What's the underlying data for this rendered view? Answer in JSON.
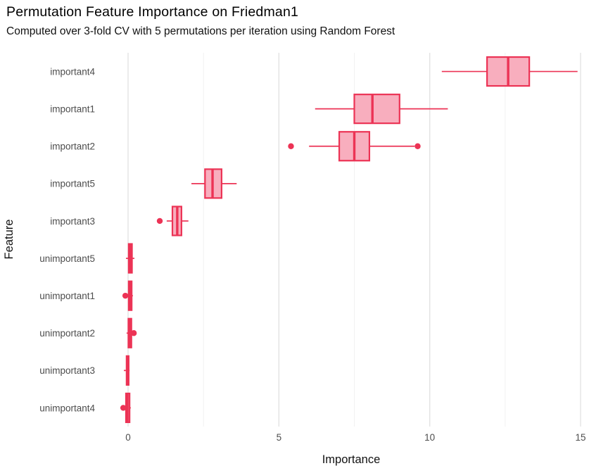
{
  "figure": {
    "background": "#ffffff"
  },
  "chart_data": {
    "type": "boxplot",
    "orientation": "horizontal",
    "title": "Permutation Feature Importance on Friedman1",
    "subtitle": "Computed over 3-fold CV with 5 permutations per iteration using Random Forest",
    "xlabel": "Importance",
    "ylabel": "Feature",
    "xlim": [
      -0.91,
      15.54
    ],
    "x_major_ticks": [
      0,
      5,
      10,
      15
    ],
    "x_minor_ticks": [
      2.5,
      7.5,
      12.5
    ],
    "grid": {
      "vertical_major": true,
      "vertical_minor": true,
      "horizontal": false
    },
    "legend": "none",
    "colors": {
      "box_stroke": "#EC3355",
      "box_fill": "#F8AEBE",
      "grid_major": "#E3E3E3",
      "grid_minor": "#F1F1F1",
      "tick_label": "#4D4D4D",
      "axis_title": "#111111"
    },
    "categories": [
      "important4",
      "important1",
      "important2",
      "important5",
      "important3",
      "unimportant5",
      "unimportant1",
      "unimportant2",
      "unimportant3",
      "unimportant4"
    ],
    "series": [
      {
        "name": "important4",
        "whisker_low": 10.4,
        "q1": 11.9,
        "median": 12.6,
        "q3": 13.3,
        "whisker_high": 14.9,
        "outliers": []
      },
      {
        "name": "important1",
        "whisker_low": 6.2,
        "q1": 7.5,
        "median": 8.1,
        "q3": 9.0,
        "whisker_high": 10.6,
        "outliers": []
      },
      {
        "name": "important2",
        "whisker_low": 6.0,
        "q1": 7.0,
        "median": 7.5,
        "q3": 8.0,
        "whisker_high": 9.5,
        "outliers": [
          5.4,
          9.6
        ]
      },
      {
        "name": "important5",
        "whisker_low": 2.1,
        "q1": 2.55,
        "median": 2.8,
        "q3": 3.1,
        "whisker_high": 3.6,
        "outliers": []
      },
      {
        "name": "important3",
        "whisker_low": 1.28,
        "q1": 1.47,
        "median": 1.63,
        "q3": 1.77,
        "whisker_high": 2.0,
        "outliers": [
          1.05
        ]
      },
      {
        "name": "unimportant5",
        "whisker_low": -0.07,
        "q1": 0.02,
        "median": 0.07,
        "q3": 0.13,
        "whisker_high": 0.21,
        "outliers": []
      },
      {
        "name": "unimportant1",
        "whisker_low": -0.04,
        "q1": 0.02,
        "median": 0.06,
        "q3": 0.12,
        "whisker_high": 0.16,
        "outliers": [
          -0.09
        ]
      },
      {
        "name": "unimportant2",
        "whisker_low": -0.05,
        "q1": 0.01,
        "median": 0.05,
        "q3": 0.11,
        "whisker_high": 0.15,
        "outliers": [
          0.19
        ]
      },
      {
        "name": "unimportant3",
        "whisker_low": -0.14,
        "q1": -0.05,
        "median": -0.01,
        "q3": 0.02,
        "whisker_high": 0.05,
        "outliers": []
      },
      {
        "name": "unimportant4",
        "whisker_low": -0.12,
        "q1": -0.07,
        "median": -0.02,
        "q3": 0.05,
        "whisker_high": 0.09,
        "outliers": [
          -0.16
        ]
      }
    ]
  }
}
